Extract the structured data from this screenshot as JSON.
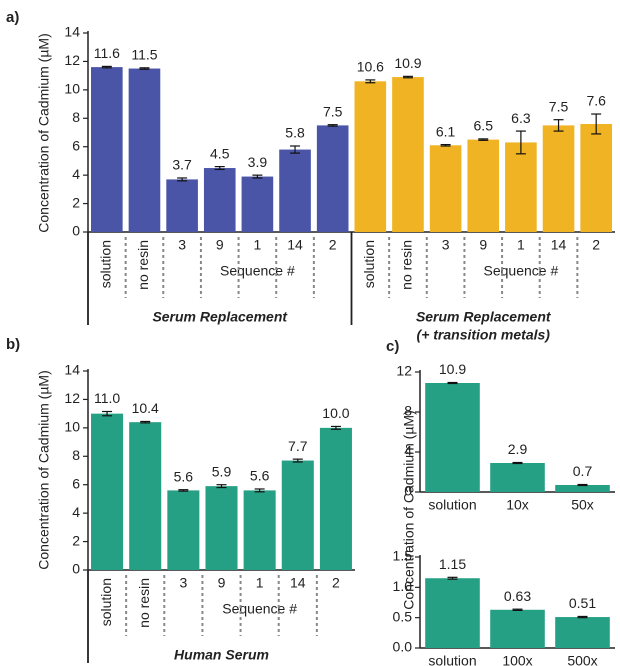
{
  "chart_data": [
    {
      "type": "bar",
      "panel": "a)",
      "ylabel": "Concentration of  Cadmium (µM)",
      "ylim": [
        0,
        14
      ],
      "yticks": [
        0,
        2,
        4,
        6,
        8,
        10,
        12,
        14
      ],
      "groups": [
        {
          "name": [
            "Serum Replacement"
          ],
          "subtitle": "Sequence #",
          "color": "#4a55a8",
          "categories": [
            "solution",
            "no resin",
            "3",
            "9",
            "1",
            "14",
            "2"
          ],
          "values": [
            11.6,
            11.5,
            3.7,
            4.5,
            3.9,
            5.8,
            7.5
          ],
          "errors": [
            0.05,
            0.05,
            0.1,
            0.1,
            0.1,
            0.25,
            0.05
          ]
        },
        {
          "name": [
            "Serum Replacement",
            "(+ transition metals)"
          ],
          "subtitle": "Sequence #",
          "color": "#f0b323",
          "categories": [
            "solution",
            "no resin",
            "3",
            "9",
            "1",
            "14",
            "2"
          ],
          "values": [
            10.6,
            10.9,
            6.1,
            6.5,
            6.3,
            7.5,
            7.6
          ],
          "errors": [
            0.1,
            0.05,
            0.05,
            0.05,
            0.8,
            0.4,
            0.7
          ]
        }
      ]
    },
    {
      "type": "bar",
      "panel": "b)",
      "ylabel": "Concentration of  Cadmium (µM)",
      "ylim": [
        0,
        14
      ],
      "yticks": [
        0,
        2,
        4,
        6,
        8,
        10,
        12,
        14
      ],
      "groups": [
        {
          "name": [
            "Human Serum"
          ],
          "subtitle": "Sequence #",
          "color": "#26a085",
          "categories": [
            "solution",
            "no resin",
            "3",
            "9",
            "1",
            "14",
            "2"
          ],
          "values": [
            11.0,
            10.4,
            5.6,
            5.9,
            5.6,
            7.7,
            10.0
          ],
          "value_labels": [
            "11.0",
            "10.4",
            "5.6",
            "5.9",
            "5.6",
            "7.7",
            "10.0"
          ],
          "errors": [
            0.15,
            0.05,
            0.05,
            0.1,
            0.1,
            0.1,
            0.1
          ]
        }
      ]
    },
    {
      "type": "bar",
      "panel": "c)",
      "ylabel": "Concentration of  Cadmium (µM)",
      "ylim": [
        0,
        12
      ],
      "yticks": [
        0,
        4,
        8,
        12
      ],
      "groups": [
        {
          "color": "#26a085",
          "categories": [
            "solution",
            "10x",
            "50x"
          ],
          "values": [
            10.9,
            2.9,
            0.7
          ],
          "errors": [
            0.05,
            0.05,
            0.05
          ]
        }
      ]
    },
    {
      "type": "bar",
      "ylim": [
        0,
        1.5
      ],
      "yticks": [
        {
          "value": 0,
          "label": "0.0"
        },
        0.5,
        {
          "value": 1,
          "label": "1.0"
        },
        1.5
      ],
      "groups": [
        {
          "color": "#26a085",
          "categories": [
            "solution",
            "100x",
            "500x"
          ],
          "values": [
            1.15,
            0.63,
            0.51
          ],
          "errors": [
            0.015,
            0.01,
            0.01
          ]
        }
      ]
    }
  ]
}
